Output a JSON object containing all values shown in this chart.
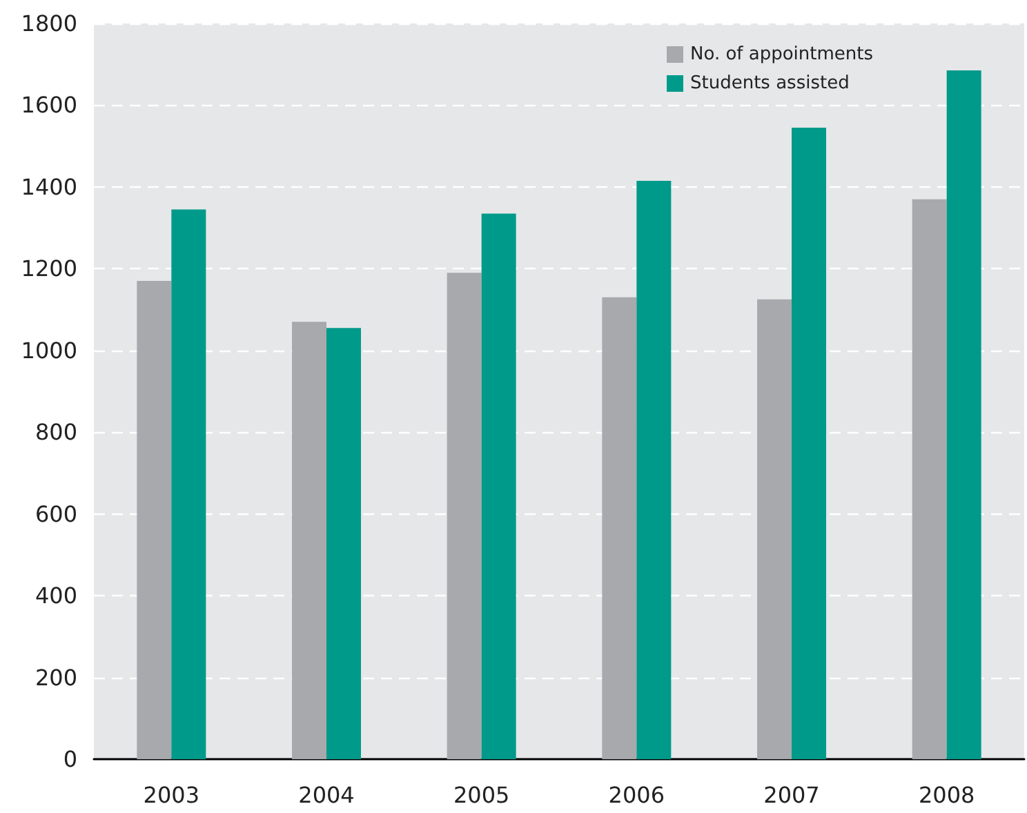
{
  "chart_data": {
    "type": "bar",
    "categories": [
      "2003",
      "2004",
      "2005",
      "2006",
      "2007",
      "2008"
    ],
    "series": [
      {
        "name": "No. of appointments",
        "color": "#a7a9ac",
        "values": [
          1170,
          1070,
          1190,
          1130,
          1125,
          1370
        ]
      },
      {
        "name": "Students assisted",
        "color": "#009a8a",
        "values": [
          1345,
          1055,
          1335,
          1415,
          1545,
          1685
        ]
      }
    ],
    "ylim": [
      0,
      1800
    ],
    "yticks": [
      0,
      200,
      400,
      600,
      800,
      1000,
      1200,
      1400,
      1600,
      1800
    ],
    "grid": "y",
    "legend": "top right"
  }
}
